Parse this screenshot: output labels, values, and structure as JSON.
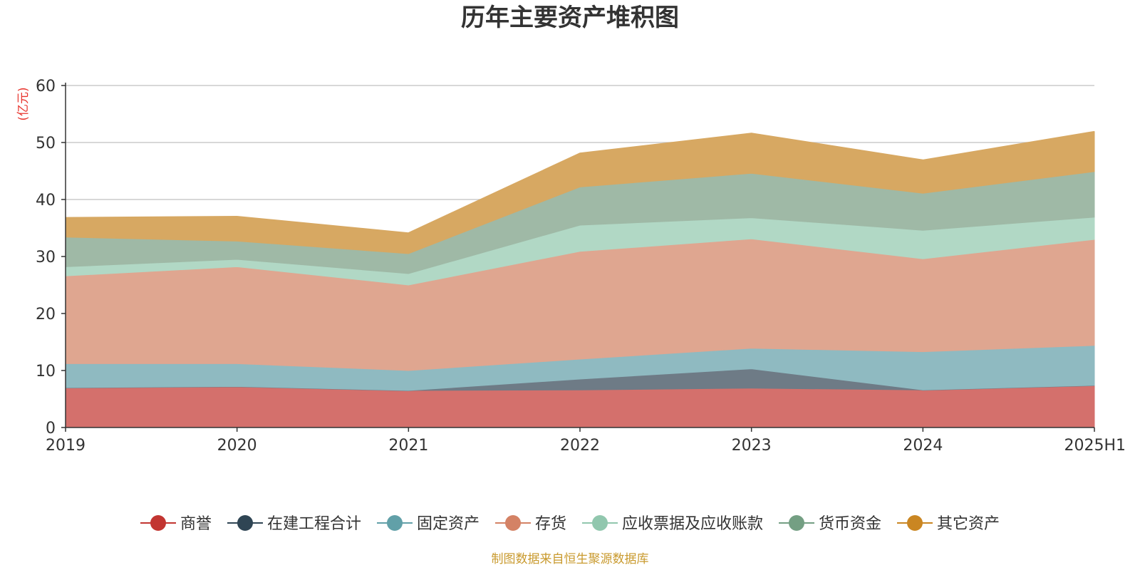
{
  "chart_data": {
    "type": "area",
    "stacked": true,
    "title": "历年主要资产堆积图",
    "unit": "(亿元)",
    "categories": [
      "2019",
      "2020",
      "2021",
      "2022",
      "2023",
      "2024",
      "2025H1"
    ],
    "ylim": [
      0,
      60
    ],
    "yticks": [
      "0",
      "10",
      "20",
      "30",
      "40",
      "50",
      "60"
    ],
    "grid": true,
    "legend_position": "bottom",
    "series": [
      {
        "name": "商誉",
        "color": "#c23531",
        "fill": "#d4706c",
        "values": [
          7.0,
          7.2,
          6.5,
          6.6,
          6.9,
          6.6,
          7.4
        ]
      },
      {
        "name": "在建工程合计",
        "color": "#2f4554",
        "fill": "#6e7b86",
        "values": [
          0.0,
          0.0,
          0.0,
          1.9,
          3.4,
          0.0,
          0.0
        ]
      },
      {
        "name": "固定资产",
        "color": "#61a0a8",
        "fill": "#8fbac1",
        "values": [
          4.2,
          4.0,
          3.5,
          3.5,
          3.6,
          6.7,
          7.0
        ]
      },
      {
        "name": "存货",
        "color": "#d48265",
        "fill": "#dfa690",
        "values": [
          15.4,
          17.0,
          15.0,
          18.9,
          19.2,
          16.3,
          18.6
        ]
      },
      {
        "name": "应收票据及应收账款",
        "color": "#91c7ae",
        "fill": "#b1d8c5",
        "values": [
          1.6,
          1.3,
          2.0,
          4.6,
          3.7,
          5.0,
          3.9
        ]
      },
      {
        "name": "货币资金",
        "color": "#749f83",
        "fill": "#9fb9a6",
        "values": [
          5.2,
          3.2,
          3.5,
          6.7,
          7.8,
          6.5,
          8.0
        ]
      },
      {
        "name": "其它资产",
        "color": "#ca8622",
        "fill": "#d7a862",
        "values": [
          3.4,
          4.3,
          3.6,
          5.9,
          7.0,
          5.8,
          7.0
        ]
      }
    ]
  },
  "source_note": "制图数据来自恒生聚源数据库"
}
